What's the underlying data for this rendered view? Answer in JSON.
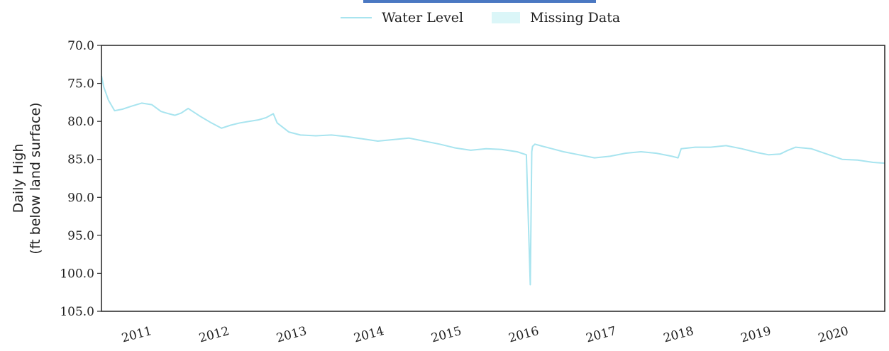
{
  "legend": {
    "water_level_label": "Water Level",
    "missing_data_label": "Missing Data"
  },
  "colors": {
    "series": "#a8e4ef",
    "missing": "#bdeef3",
    "axis": "#222222",
    "accent_bar": "#4a78c2"
  },
  "chart_data": {
    "type": "line",
    "title": "",
    "xlabel": "",
    "ylabel_lines": [
      "Daily High",
      "(ft below land surface)"
    ],
    "y_inverted": true,
    "ylim": [
      70.0,
      105.0
    ],
    "y_ticks": [
      "70.0",
      "75.0",
      "80.0",
      "85.0",
      "90.0",
      "95.0",
      "100.0",
      "105.0"
    ],
    "xlim": [
      2010.33,
      2020.45
    ],
    "x_ticks": [
      {
        "value": 2011,
        "label": "2011"
      },
      {
        "value": 2012,
        "label": "2012"
      },
      {
        "value": 2013,
        "label": "2013"
      },
      {
        "value": 2014,
        "label": "2014"
      },
      {
        "value": 2015,
        "label": "2015"
      },
      {
        "value": 2016,
        "label": "2016"
      },
      {
        "value": 2017,
        "label": "2017"
      },
      {
        "value": 2018,
        "label": "2018"
      },
      {
        "value": 2019,
        "label": "2019"
      },
      {
        "value": 2020,
        "label": "2020"
      }
    ],
    "grid": false,
    "legend_position": "top-center",
    "series": [
      {
        "name": "Water Level",
        "x": [
          2010.33,
          2010.36,
          2010.42,
          2010.5,
          2010.6,
          2010.72,
          2010.85,
          2010.98,
          2011.1,
          2011.2,
          2011.28,
          2011.36,
          2011.45,
          2011.6,
          2011.75,
          2011.88,
          2012.0,
          2012.12,
          2012.24,
          2012.36,
          2012.46,
          2012.55,
          2012.6,
          2012.75,
          2012.9,
          2013.1,
          2013.3,
          2013.5,
          2013.7,
          2013.9,
          2014.1,
          2014.3,
          2014.5,
          2014.7,
          2014.9,
          2015.1,
          2015.3,
          2015.5,
          2015.7,
          2015.82,
          2015.87,
          2015.89,
          2015.9,
          2015.93,
          2016.0,
          2016.15,
          2016.3,
          2016.5,
          2016.7,
          2016.9,
          2017.1,
          2017.3,
          2017.5,
          2017.7,
          2017.78,
          2017.82,
          2018.0,
          2018.2,
          2018.4,
          2018.6,
          2018.8,
          2018.95,
          2019.1,
          2019.2,
          2019.3,
          2019.5,
          2019.7,
          2019.9,
          2020.1,
          2020.3,
          2020.45
        ],
        "y": [
          74.0,
          75.5,
          77.2,
          78.6,
          78.4,
          78.0,
          77.6,
          77.8,
          78.7,
          79.0,
          79.2,
          78.9,
          78.3,
          79.3,
          80.2,
          80.9,
          80.5,
          80.2,
          80.0,
          79.8,
          79.5,
          79.0,
          80.2,
          81.4,
          81.8,
          81.9,
          81.8,
          82.0,
          82.3,
          82.6,
          82.4,
          82.2,
          82.6,
          83.0,
          83.5,
          83.8,
          83.6,
          83.7,
          84.0,
          84.4,
          101.5,
          84.0,
          83.3,
          83.0,
          83.2,
          83.6,
          84.0,
          84.4,
          84.8,
          84.6,
          84.2,
          84.0,
          84.2,
          84.6,
          84.8,
          83.6,
          83.4,
          83.4,
          83.2,
          83.6,
          84.1,
          84.4,
          84.3,
          83.8,
          83.4,
          83.6,
          84.3,
          85.0,
          85.1,
          85.4,
          85.5
        ]
      }
    ]
  }
}
